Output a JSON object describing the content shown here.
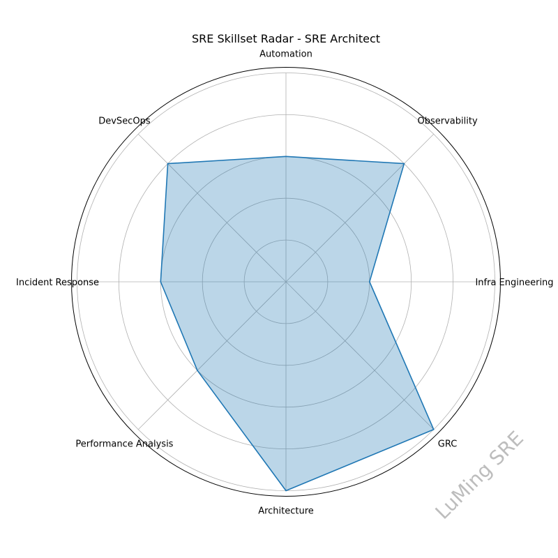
{
  "chart_data": {
    "type": "radar",
    "title": "SRE Skillset Radar - SRE Architect",
    "categories": [
      "Automation",
      "Observability",
      "Infra Engineering",
      "GRC",
      "Architecture",
      "Performance Analysis",
      "Incident Response",
      "DevSecOps"
    ],
    "series": [
      {
        "values": [
          3,
          4,
          2,
          5,
          5,
          3,
          3,
          4
        ],
        "color": "#1f77b4"
      }
    ],
    "rlim": [
      0,
      5
    ],
    "grid": true
  },
  "watermark": "LuMing SRE"
}
